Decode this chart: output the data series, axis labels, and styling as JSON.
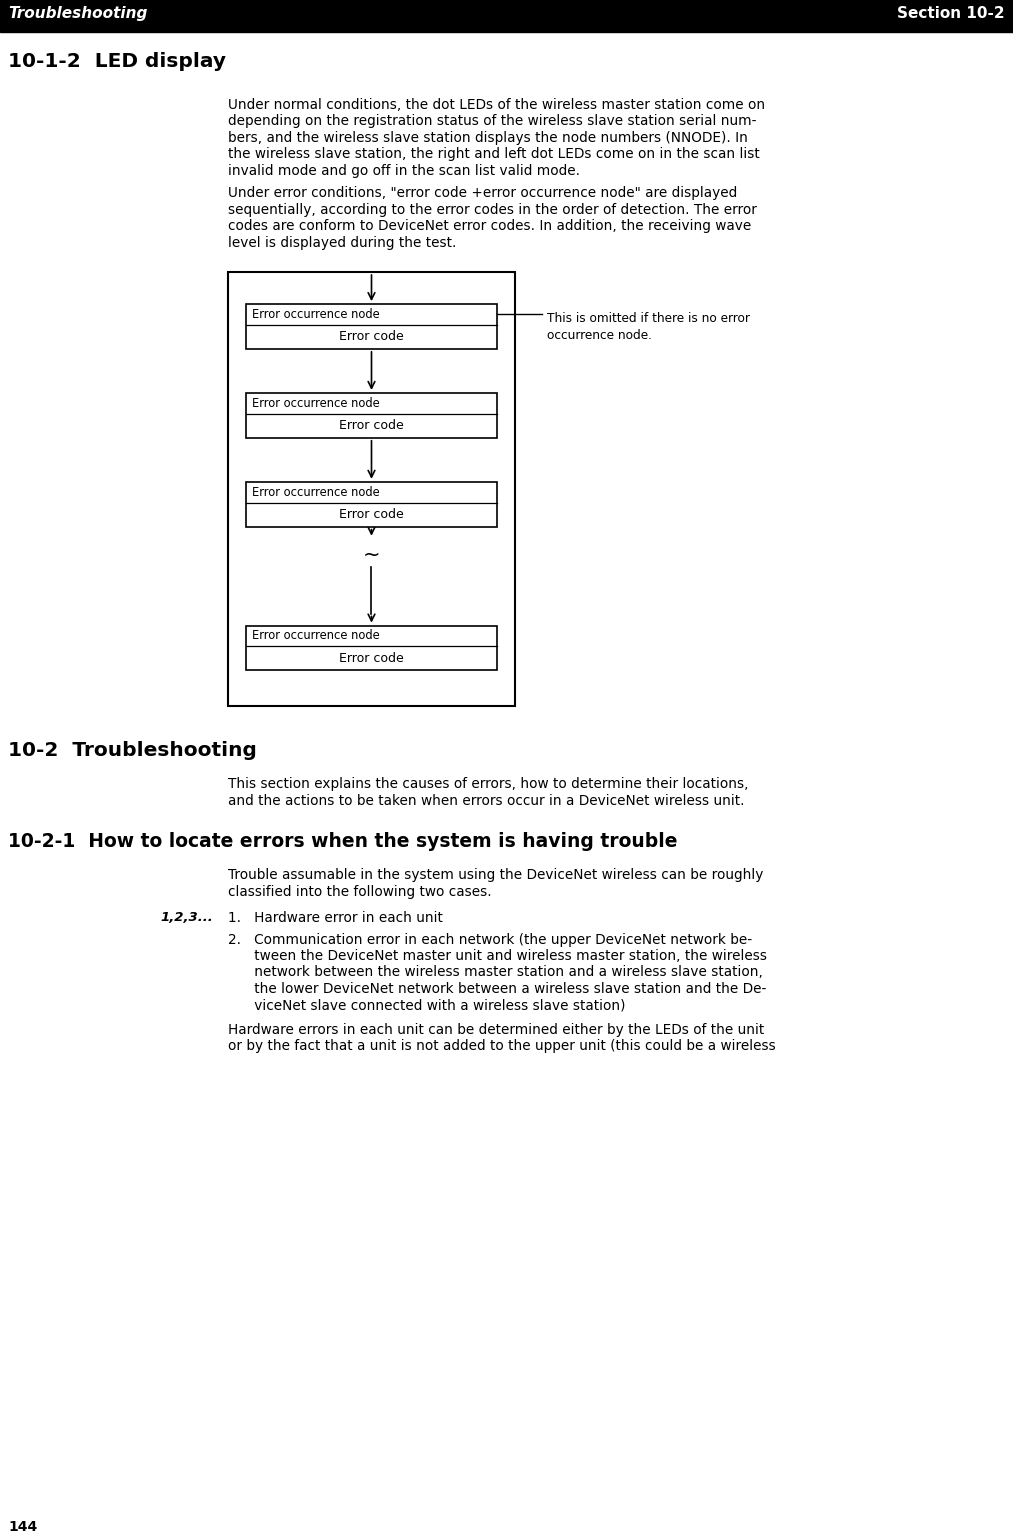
{
  "header_left": "Troubleshooting",
  "header_right": "Section 10-2",
  "section_title": "10-1-2  LED display",
  "annotation": "This is omitted if there is no error\noccurrence node.",
  "section2_title": "10-2  Troubleshooting",
  "section3_title": "10-2-1  How to locate errors when the system is having trouble",
  "numbered_label": "1,2,3...",
  "item1": "1.   Hardware error in each unit",
  "item2_lines": [
    "2.   Communication error in each network (the upper DeviceNet network be-",
    "      tween the DeviceNet master unit and wireless master station, the wireless",
    "      network between the wireless master station and a wireless slave station,",
    "      the lower DeviceNet network between a wireless slave station and the De-",
    "      viceNet slave connected with a wireless slave station)"
  ],
  "hw_lines": [
    "Hardware errors in each unit can be determined either by the LEDs of the unit",
    "or by the fact that a unit is not added to the upper unit (this could be a wireless"
  ],
  "p1_lines": [
    "Under normal conditions, the dot LEDs of the wireless master station come on",
    "depending on the registration status of the wireless slave station serial num-",
    "bers, and the wireless slave station displays the node numbers (NNODE). In",
    "the wireless slave station, the right and left dot LEDs come on in the scan list",
    "invalid mode and go off in the scan list valid mode."
  ],
  "p2_lines": [
    "Under error conditions, \"error code +error occurrence node\" are displayed",
    "sequentially, according to the error codes in the order of detection. The error",
    "codes are conform to DeviceNet error codes. In addition, the receiving wave",
    "level is displayed during the test."
  ],
  "s2_lines": [
    "This section explains the causes of errors, how to determine their locations,",
    "and the actions to be taken when errors occur in a DeviceNet wireless unit."
  ],
  "s3_lines": [
    "Trouble assumable in the system using the DeviceNet wireless can be roughly",
    "classified into the following two cases."
  ],
  "page_number": "144",
  "bg_color": "#ffffff",
  "header_bg": "#000000",
  "header_text": "#ffffff"
}
